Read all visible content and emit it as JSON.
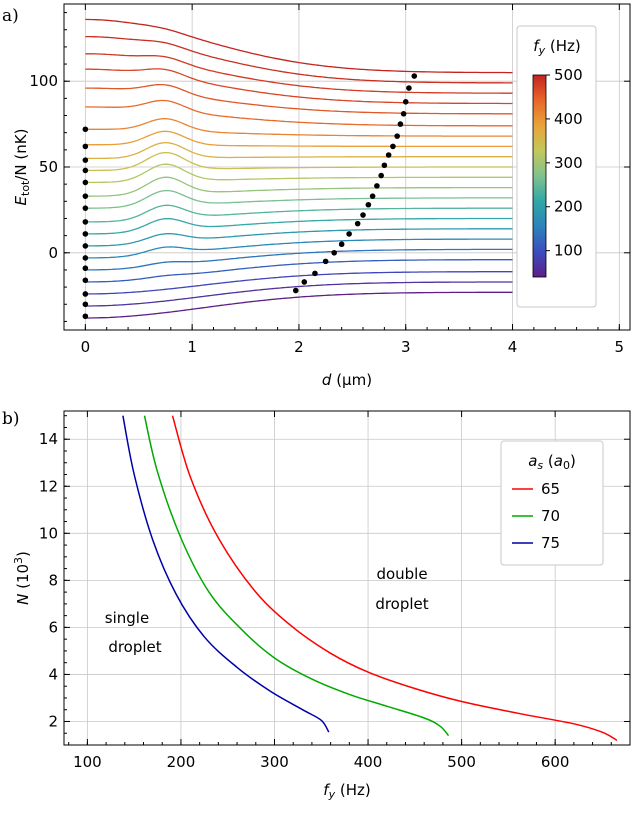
{
  "chart_data": [
    {
      "panel": "a)",
      "type": "line",
      "xlabel_var": "d",
      "xlabel_unit": " (µm)",
      "ylabel_var": "E",
      "ylabel_sub": "tot",
      "ylabel_rest": "/N (nK)",
      "xlim": [
        -0.2,
        5.1
      ],
      "ylim": [
        -45,
        145
      ],
      "xticks": [
        "0",
        "1",
        "2",
        "3",
        "4",
        "5"
      ],
      "yticks": [
        "0",
        "50",
        "100"
      ],
      "grid": true,
      "colorbar": {
        "label_var": "f",
        "label_sub": "y",
        "label_unit": " (Hz)",
        "range": [
          40,
          500
        ],
        "ticks": [
          "100",
          "200",
          "300",
          "400",
          "500"
        ],
        "colormap": "spectral",
        "stops": [
          "#5e1f88",
          "#3b4cc0",
          "#2b83ba",
          "#2fa7a7",
          "#80c28f",
          "#c3c85a",
          "#e9a33a",
          "#e8672a",
          "#c4231f"
        ],
        "placement": "right"
      },
      "series": [
        {
          "fy": 40,
          "e0": -38,
          "asym": -23,
          "bump": 0,
          "min_x": 1.97,
          "min_y": -22
        },
        {
          "fy": 65,
          "e0": -31,
          "asym": -17,
          "bump": 0,
          "min_x": 2.05,
          "min_y": -17
        },
        {
          "fy": 90,
          "e0": -24,
          "asym": -11,
          "bump": 0,
          "min_x": 2.15,
          "min_y": -12
        },
        {
          "fy": 115,
          "e0": -17,
          "asym": -4,
          "bump": 1,
          "min_x": 2.25,
          "min_y": -5
        },
        {
          "fy": 140,
          "e0": -10,
          "asym": 2,
          "bump": 2,
          "min_x": 2.33,
          "min_y": 0
        },
        {
          "fy": 165,
          "e0": -3,
          "asym": 8,
          "bump": 4,
          "min_x": 2.4,
          "min_y": 5
        },
        {
          "fy": 190,
          "e0": 4,
          "asym": 14,
          "bump": 5,
          "min_x": 2.47,
          "min_y": 11
        },
        {
          "fy": 215,
          "e0": 11,
          "asym": 20,
          "bump": 7,
          "min_x": 2.55,
          "min_y": 17
        },
        {
          "fy": 240,
          "e0": 18,
          "asym": 26,
          "bump": 8,
          "min_x": 2.6,
          "min_y": 22
        },
        {
          "fy": 265,
          "e0": 26,
          "asym": 32,
          "bump": 9,
          "min_x": 2.65,
          "min_y": 28
        },
        {
          "fy": 290,
          "e0": 33,
          "asym": 38,
          "bump": 10,
          "min_x": 2.69,
          "min_y": 33
        },
        {
          "fy": 315,
          "e0": 41,
          "asym": 44,
          "bump": 10,
          "min_x": 2.73,
          "min_y": 39
        },
        {
          "fy": 340,
          "e0": 48,
          "asym": 50,
          "bump": 10,
          "min_x": 2.77,
          "min_y": 45
        },
        {
          "fy": 365,
          "e0": 55,
          "asym": 56,
          "bump": 9,
          "min_x": 2.8,
          "min_y": 51
        },
        {
          "fy": 390,
          "e0": 63,
          "asym": 62,
          "bump": 8,
          "min_x": 2.84,
          "min_y": 57
        },
        {
          "fy": 415,
          "e0": 72,
          "asym": 68,
          "bump": 7,
          "min_x": 2.88,
          "min_y": 62
        },
        {
          "fy": 440,
          "e0": 85,
          "asym": 74,
          "bump": 6,
          "min_x": 2.92,
          "min_y": 68
        },
        {
          "fy": 455,
          "e0": 96,
          "asym": 81,
          "bump": 5,
          "min_x": 2.95,
          "min_y": 75
        },
        {
          "fy": 470,
          "e0": 107,
          "asym": 87,
          "bump": 4,
          "min_x": 2.98,
          "min_y": 81
        },
        {
          "fy": 480,
          "e0": 116,
          "asym": 93,
          "bump": 3,
          "min_x": 3.0,
          "min_y": 88
        },
        {
          "fy": 490,
          "e0": 126,
          "asym": 99,
          "bump": 2,
          "min_x": 3.03,
          "min_y": 96
        },
        {
          "fy": 500,
          "e0": 136,
          "asym": 105,
          "bump": 1,
          "min_x": 3.08,
          "min_y": 103
        }
      ],
      "zero_markers_y": [
        -37,
        -30,
        -24,
        -16,
        -9,
        -3,
        4,
        11,
        18,
        26,
        33,
        41,
        48,
        54,
        62,
        72
      ]
    },
    {
      "panel": "b)",
      "type": "line",
      "xlabel_var": "f",
      "xlabel_sub": "y",
      "xlabel_unit": " (Hz)",
      "ylabel_var": "N",
      "ylabel_unit_pre": " (10",
      "ylabel_sup": "3",
      "ylabel_unit_post": ")",
      "xlim": [
        75,
        680
      ],
      "ylim": [
        1,
        15.2
      ],
      "xticks": [
        100,
        200,
        300,
        400,
        500,
        600
      ],
      "yticks": [
        2,
        4,
        6,
        8,
        10,
        12,
        14
      ],
      "grid": true,
      "legend": {
        "title_var": "a",
        "title_sub": "s",
        "title_unit_pre": " (",
        "title_unit_var": "a",
        "title_unit_sub": "0",
        "title_unit_post": ")",
        "placement": "top-right"
      },
      "annotations": [
        {
          "lines": [
            "single",
            "droplet"
          ],
          "x": 140,
          "y": 6.3
        },
        {
          "lines": [
            "double",
            "droplet"
          ],
          "x": 410,
          "y": 9.2
        }
      ],
      "series": [
        {
          "name": "65",
          "color": "#ff0000",
          "x": [
            191,
            210,
            240,
            280,
            320,
            360,
            400,
            450,
            500,
            560,
            620,
            650,
            666
          ],
          "y": [
            15,
            12.4,
            9.8,
            7.5,
            6.0,
            4.9,
            4.1,
            3.4,
            2.85,
            2.35,
            1.9,
            1.55,
            1.2
          ]
        },
        {
          "name": "70",
          "color": "#00aa00",
          "x": [
            161,
            175,
            200,
            230,
            265,
            300,
            340,
            380,
            420,
            460,
            477,
            486
          ],
          "y": [
            15,
            12.6,
            9.8,
            7.5,
            5.9,
            4.7,
            3.8,
            3.15,
            2.65,
            2.15,
            1.8,
            1.4
          ]
        },
        {
          "name": "75",
          "color": "#0000aa",
          "x": [
            138,
            150,
            170,
            195,
            225,
            260,
            295,
            330,
            350,
            358
          ],
          "y": [
            15,
            12.5,
            9.7,
            7.4,
            5.6,
            4.3,
            3.3,
            2.5,
            2.05,
            1.55
          ]
        }
      ]
    }
  ]
}
